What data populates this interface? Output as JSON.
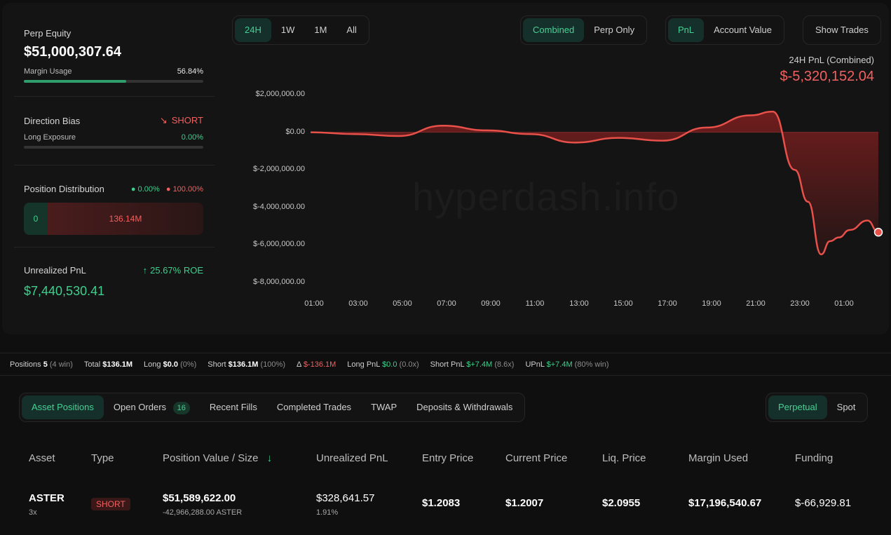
{
  "equity": {
    "label": "Perp Equity",
    "value": "$51,000,307.64",
    "margin_label": "Margin Usage",
    "margin_value": "56.84%",
    "margin_fraction": 0.5684
  },
  "bias": {
    "label": "Direction Bias",
    "value": "SHORT",
    "long_label": "Long Exposure",
    "long_value": "0.00%",
    "long_fraction": 0
  },
  "distribution": {
    "label": "Position Distribution",
    "long_pct": "0.00%",
    "short_pct": "100.00%",
    "long_amount": "0",
    "short_amount": "136.14M"
  },
  "upnl": {
    "label": "Unrealized PnL",
    "roe": "25.67% ROE",
    "value": "$7,440,530.41"
  },
  "range_tabs": [
    "24H",
    "1W",
    "1M",
    "All"
  ],
  "mode_tabs": [
    "Combined",
    "Perp Only"
  ],
  "metric_tabs": [
    "PnL",
    "Account Value"
  ],
  "show_trades": "Show Trades",
  "pnl_header": {
    "label": "24H PnL (Combined)",
    "value": "$-5,320,152.04"
  },
  "watermark": "hyperdash.info",
  "chart_data": {
    "type": "area",
    "title": "24H PnL (Combined)",
    "y_ticks": [
      "$2,000,000.00",
      "$0.00",
      "$-2,000,000.00",
      "$-4,000,000.00",
      "$-6,000,000.00",
      "$-8,000,000.00"
    ],
    "ylim": [
      -8000000,
      2000000
    ],
    "x_ticks": [
      "01:00",
      "03:00",
      "05:00",
      "07:00",
      "09:00",
      "11:00",
      "13:00",
      "15:00",
      "17:00",
      "19:00",
      "21:00",
      "23:00",
      "01:00"
    ],
    "series": [
      {
        "x": [
          0,
          2,
          4,
          6,
          8,
          10,
          12,
          14,
          16,
          18,
          20,
          21,
          22,
          22.6,
          23.2,
          23.6,
          24,
          24.5,
          25.3,
          25.8
        ],
        "y": [
          0,
          -100000,
          -200000,
          350000,
          100000,
          -100000,
          -550000,
          -300000,
          -450000,
          250000,
          900000,
          1100000,
          -2000000,
          -3700000,
          -6500000,
          -5800000,
          -5600000,
          -5200000,
          -4700000,
          -5320152
        ]
      }
    ],
    "colors": {
      "line": "#e8504a",
      "fill": "#7a1e1e"
    },
    "grid": false
  },
  "stats": {
    "positions_label": "Positions",
    "positions": "5",
    "positions_note": "(4 win)",
    "total_label": "Total",
    "total": "$136.1M",
    "long_label": "Long",
    "long": "$0.0",
    "long_note": "(0%)",
    "short_label": "Short",
    "short": "$136.1M",
    "short_note": "(100%)",
    "delta_label": "Δ",
    "delta": "$-136.1M",
    "longpnl_label": "Long PnL",
    "longpnl": "$0.0",
    "longpnl_note": "(0.0x)",
    "shortpnl_label": "Short PnL",
    "shortpnl": "$+7.4M",
    "shortpnl_note": "(8.6x)",
    "upnl_label": "UPnL",
    "upnl": "$+7.4M",
    "upnl_note": "(80% win)"
  },
  "tabs": {
    "asset_positions": "Asset Positions",
    "open_orders": "Open Orders",
    "open_orders_count": "16",
    "recent_fills": "Recent Fills",
    "completed_trades": "Completed Trades",
    "twap": "TWAP",
    "deposits": "Deposits & Withdrawals",
    "perpetual": "Perpetual",
    "spot": "Spot"
  },
  "table": {
    "headers": [
      "Asset",
      "Type",
      "Position Value / Size",
      "Unrealized PnL",
      "Entry Price",
      "Current Price",
      "Liq. Price",
      "Margin Used",
      "Funding"
    ],
    "rows": [
      {
        "asset": "ASTER",
        "leverage": "3x",
        "type": "SHORT",
        "value": "$51,589,622.00",
        "size": "-42,966,288.00 ASTER",
        "upnl": "$328,641.57",
        "upnl_pct": "1.91%",
        "entry": "$1.2083",
        "current": "$1.2007",
        "liq": "$2.0955",
        "margin": "$17,196,540.67",
        "funding": "$-66,929.81"
      }
    ]
  }
}
